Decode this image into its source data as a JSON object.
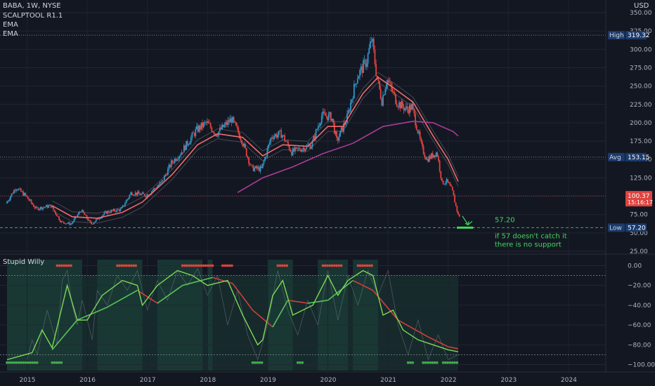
{
  "header": {
    "symbol": "BABA, 1W, NYSE",
    "indicators": [
      "SCALPTOOL R1.1",
      "EMA",
      "EMA"
    ],
    "currency": "USD"
  },
  "oscillator": {
    "title": "Stupid Willy"
  },
  "colors": {
    "background": "#131722",
    "candle_up": "#2f95c7",
    "candle_down": "#e0433e",
    "ema_fast": "#f06a6a",
    "ema_slow": "#a83d96",
    "support": "#43d65c",
    "osc_fast": "#7ed957",
    "osc_slow_down": "#d63c3c",
    "osc_bg": "#1a3b36"
  },
  "chart_data": [
    {
      "type": "candlestick",
      "title": "BABA, 1W, NYSE",
      "ylabel": "USD",
      "ylim": [
        25,
        350
      ],
      "y_ticks": [
        25,
        50,
        75,
        100,
        125,
        150,
        175,
        200,
        225,
        250,
        275,
        300,
        325,
        350
      ],
      "x_ticks": [
        "2015",
        "2016",
        "2017",
        "2018",
        "2019",
        "2020",
        "2021",
        "2022",
        "2023",
        "2024"
      ],
      "price_path": [
        [
          "2014-09",
          90
        ],
        [
          "2014-11",
          112
        ],
        [
          "2015-01",
          100
        ],
        [
          "2015-03",
          83
        ],
        [
          "2015-06",
          87
        ],
        [
          "2015-08",
          65
        ],
        [
          "2015-10",
          62
        ],
        [
          "2015-12",
          81
        ],
        [
          "2016-02",
          62
        ],
        [
          "2016-05",
          78
        ],
        [
          "2016-08",
          82
        ],
        [
          "2016-10",
          105
        ],
        [
          "2017-01",
          101
        ],
        [
          "2017-04",
          118
        ],
        [
          "2017-06",
          145
        ],
        [
          "2017-08",
          160
        ],
        [
          "2017-11",
          190
        ],
        [
          "2018-01",
          200
        ],
        [
          "2018-03",
          185
        ],
        [
          "2018-06",
          205
        ],
        [
          "2018-08",
          178
        ],
        [
          "2018-10",
          138
        ],
        [
          "2018-12",
          137
        ],
        [
          "2019-02",
          182
        ],
        [
          "2019-04",
          185
        ],
        [
          "2019-06",
          160
        ],
        [
          "2019-08",
          165
        ],
        [
          "2019-10",
          170
        ],
        [
          "2019-12",
          210
        ],
        [
          "2020-02",
          208
        ],
        [
          "2020-03",
          175
        ],
        [
          "2020-05",
          205
        ],
        [
          "2020-07",
          262
        ],
        [
          "2020-09",
          285
        ],
        [
          "2020-10",
          315
        ],
        [
          "2020-11",
          262
        ],
        [
          "2020-12",
          230
        ],
        [
          "2021-01",
          260
        ],
        [
          "2021-03",
          228
        ],
        [
          "2021-05",
          218
        ],
        [
          "2021-06",
          222
        ],
        [
          "2021-08",
          165
        ],
        [
          "2021-09",
          150
        ],
        [
          "2021-11",
          160
        ],
        [
          "2021-12",
          118
        ],
        [
          "2022-01",
          120
        ],
        [
          "2022-02",
          108
        ],
        [
          "2022-03",
          80
        ],
        [
          "2022-03-10",
          73
        ]
      ],
      "ema_fast_path": [
        [
          "2015-06",
          87
        ],
        [
          "2015-10",
          72
        ],
        [
          "2016-03",
          70
        ],
        [
          "2016-08",
          78
        ],
        [
          "2016-12",
          92
        ],
        [
          "2017-06",
          130
        ],
        [
          "2017-11",
          170
        ],
        [
          "2018-03",
          185
        ],
        [
          "2018-08",
          180
        ],
        [
          "2018-12",
          155
        ],
        [
          "2019-04",
          170
        ],
        [
          "2019-09",
          168
        ],
        [
          "2020-01",
          195
        ],
        [
          "2020-04",
          195
        ],
        [
          "2020-08",
          240
        ],
        [
          "2020-11",
          262
        ],
        [
          "2021-02",
          248
        ],
        [
          "2021-06",
          228
        ],
        [
          "2021-10",
          182
        ],
        [
          "2022-01",
          150
        ],
        [
          "2022-03",
          120
        ]
      ],
      "ema_slow_path": [
        [
          "2018-07",
          105
        ],
        [
          "2018-12",
          125
        ],
        [
          "2019-06",
          140
        ],
        [
          "2019-12",
          158
        ],
        [
          "2020-06",
          172
        ],
        [
          "2020-12",
          195
        ],
        [
          "2021-06",
          202
        ],
        [
          "2021-10",
          200
        ],
        [
          "2022-02",
          188
        ],
        [
          "2022-03",
          182
        ]
      ],
      "reference_lines": [
        {
          "label": "High",
          "value": 319.32,
          "value_text": "319.32"
        },
        {
          "label": "Avg",
          "value": 153.15,
          "value_text": "153.15"
        },
        {
          "label": "Low",
          "value": 57.2,
          "value_text": "57.20"
        }
      ],
      "last_price": {
        "value": 100.37,
        "value_text": "100.37",
        "countdown": "15:16:17"
      },
      "annotations": [
        {
          "text": "57.20",
          "value": 57.2
        },
        {
          "text": "if 57 doesn't catch it"
        },
        {
          "text": "there is no support"
        }
      ]
    },
    {
      "type": "line",
      "title": "Stupid Willy",
      "ylim": [
        -106,
        6
      ],
      "y_ticks": [
        0,
        -20,
        -40,
        -60,
        -80,
        -100
      ],
      "y_tick_labels": [
        "0.00",
        "−20.00",
        "−40.00",
        "−60.00",
        "−80.00",
        "−100.00"
      ],
      "fast_path": [
        [
          "2014-09",
          -95
        ],
        [
          "2015-02",
          -88
        ],
        [
          "2015-04",
          -65
        ],
        [
          "2015-06",
          -83
        ],
        [
          "2015-09",
          -20
        ],
        [
          "2015-11",
          -55
        ],
        [
          "2016-01",
          -55
        ],
        [
          "2016-04",
          -30
        ],
        [
          "2016-08",
          -15
        ],
        [
          "2016-11",
          -20
        ],
        [
          "2016-12",
          -40
        ],
        [
          "2017-03",
          -20
        ],
        [
          "2017-07",
          -5
        ],
        [
          "2017-10",
          -10
        ],
        [
          "2018-01",
          -20
        ],
        [
          "2018-05",
          -15
        ],
        [
          "2018-08",
          -50
        ],
        [
          "2018-11",
          -80
        ],
        [
          "2018-12",
          -75
        ],
        [
          "2019-02",
          -30
        ],
        [
          "2019-04",
          -15
        ],
        [
          "2019-06",
          -50
        ],
        [
          "2019-08",
          -45
        ],
        [
          "2019-10",
          -40
        ],
        [
          "2019-12",
          -20
        ],
        [
          "2020-01",
          -10
        ],
        [
          "2020-03",
          -30
        ],
        [
          "2020-05",
          -15
        ],
        [
          "2020-08",
          -5
        ],
        [
          "2020-10",
          -10
        ],
        [
          "2020-12",
          -50
        ],
        [
          "2021-02",
          -45
        ],
        [
          "2021-04",
          -65
        ],
        [
          "2021-07",
          -75
        ],
        [
          "2021-10",
          -80
        ],
        [
          "2022-01",
          -85
        ],
        [
          "2022-03",
          -87
        ]
      ],
      "slow_path": [
        [
          "2015-06",
          -85
        ],
        [
          "2015-11",
          -55
        ],
        [
          "2016-05",
          -42
        ],
        [
          "2016-11",
          -25
        ],
        [
          "2017-03",
          -38
        ],
        [
          "2017-08",
          -20
        ],
        [
          "2018-02",
          -12
        ],
        [
          "2018-06",
          -18
        ],
        [
          "2018-10",
          -45
        ],
        [
          "2019-02",
          -62
        ],
        [
          "2019-05",
          -35
        ],
        [
          "2019-09",
          -38
        ],
        [
          "2020-01",
          -35
        ],
        [
          "2020-06",
          -15
        ],
        [
          "2020-10",
          -25
        ],
        [
          "2021-03",
          -55
        ],
        [
          "2021-09",
          -72
        ],
        [
          "2022-01",
          -82
        ],
        [
          "2022-03",
          -84
        ]
      ],
      "noisy_path": [
        [
          "2015-01",
          -95
        ],
        [
          "2015-02",
          -75
        ],
        [
          "2015-03",
          -90
        ],
        [
          "2015-05",
          -45
        ],
        [
          "2015-07",
          -80
        ],
        [
          "2015-08",
          -15
        ],
        [
          "2015-09",
          -5
        ],
        [
          "2015-10",
          -40
        ],
        [
          "2015-11",
          -60
        ],
        [
          "2015-12",
          -35
        ],
        [
          "2016-02",
          -75
        ],
        [
          "2016-03",
          -25
        ],
        [
          "2016-05",
          -40
        ],
        [
          "2016-07",
          -10
        ],
        [
          "2016-09",
          -25
        ],
        [
          "2016-11",
          -5
        ],
        [
          "2017-01",
          -45
        ],
        [
          "2017-03",
          -15
        ],
        [
          "2017-05",
          -35
        ],
        [
          "2017-07",
          -5
        ],
        [
          "2017-09",
          -20
        ],
        [
          "2017-11",
          -3
        ],
        [
          "2018-01",
          -30
        ],
        [
          "2018-03",
          -10
        ],
        [
          "2018-05",
          -60
        ],
        [
          "2018-07",
          -25
        ],
        [
          "2018-09",
          -70
        ],
        [
          "2018-11",
          -95
        ],
        [
          "2019-01",
          -60
        ],
        [
          "2019-03",
          -5
        ],
        [
          "2019-05",
          -45
        ],
        [
          "2019-07",
          -70
        ],
        [
          "2019-09",
          -35
        ],
        [
          "2019-11",
          -60
        ],
        [
          "2020-01",
          -5
        ],
        [
          "2020-03",
          -55
        ],
        [
          "2020-05",
          -10
        ],
        [
          "2020-07",
          -40
        ],
        [
          "2020-09",
          -5
        ],
        [
          "2020-11",
          -30
        ],
        [
          "2021-01",
          -5
        ],
        [
          "2021-03",
          -60
        ],
        [
          "2021-05",
          -90
        ],
        [
          "2021-07",
          -55
        ],
        [
          "2021-09",
          -95
        ],
        [
          "2021-11",
          -70
        ],
        [
          "2022-01",
          -95
        ],
        [
          "2022-03",
          -90
        ]
      ]
    }
  ]
}
